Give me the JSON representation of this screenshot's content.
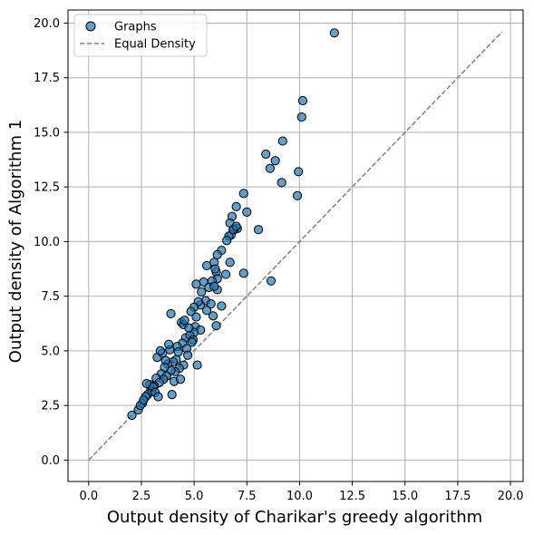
{
  "chart_data": {
    "type": "scatter",
    "title": "",
    "xlabel": "Output density of Charikar's greedy algorithm",
    "ylabel": "Output density of Algorithm 1",
    "xlim": [
      -0.98,
      20.6
    ],
    "ylim": [
      -0.98,
      20.6
    ],
    "xticks": [
      0.0,
      2.5,
      5.0,
      7.5,
      10.0,
      12.5,
      15.0,
      17.5,
      20.0
    ],
    "yticks": [
      0.0,
      2.5,
      5.0,
      7.5,
      10.0,
      12.5,
      15.0,
      17.5,
      20.0
    ],
    "xtick_labels": [
      "0.0",
      "2.5",
      "5.0",
      "7.5",
      "10.0",
      "12.5",
      "15.0",
      "17.5",
      "20.0"
    ],
    "ytick_labels": [
      "0.0",
      "2.5",
      "5.0",
      "7.5",
      "10.0",
      "12.5",
      "15.0",
      "17.5",
      "20.0"
    ],
    "grid": true,
    "legend_position": "top-left",
    "series": [
      {
        "name": "Graphs",
        "kind": "scatter",
        "color": "#1f77b4",
        "edge_color": "#000000",
        "alpha": 0.7,
        "x": [
          11.65,
          10.15,
          10.1,
          9.2,
          8.4,
          8.85,
          8.6,
          9.95,
          9.15,
          9.9,
          7.35,
          7.0,
          6.8,
          7.5,
          6.7,
          7.05,
          6.9,
          6.75,
          6.65,
          6.85,
          6.55,
          6.3,
          6.1,
          7.0,
          8.05,
          6.7,
          5.95,
          6.05,
          5.6,
          6.0,
          6.1,
          5.45,
          5.1,
          6.5,
          5.85,
          7.35,
          8.65,
          5.7,
          6.1,
          5.95,
          5.35,
          5.55,
          5.3,
          5.8,
          5.2,
          5.0,
          5.6,
          5.9,
          6.05,
          4.85,
          6.3,
          5.1,
          4.4,
          4.5,
          5.05,
          5.3,
          5.0,
          4.6,
          4.8,
          4.95,
          4.45,
          4.2,
          3.85,
          4.65,
          4.25,
          4.7,
          4.15,
          4.0,
          4.5,
          4.3,
          3.75,
          4.1,
          3.9,
          3.45,
          3.7,
          3.55,
          3.2,
          3.35,
          3.1,
          2.95,
          2.8,
          3.0,
          2.9,
          2.7,
          2.55,
          2.35,
          2.05,
          2.45,
          2.6,
          4.05,
          3.95,
          4.35,
          3.65,
          3.25,
          3.05,
          3.5,
          3.8,
          4.75,
          4.55,
          2.75,
          3.15,
          3.3,
          3.6,
          3.4,
          4.9,
          5.15,
          3.9
        ],
        "y": [
          19.55,
          16.45,
          15.7,
          14.6,
          14.0,
          13.7,
          13.35,
          13.2,
          12.7,
          12.1,
          12.2,
          11.6,
          11.15,
          11.35,
          10.85,
          10.6,
          10.55,
          10.3,
          10.25,
          10.55,
          10.05,
          9.6,
          9.4,
          10.7,
          10.55,
          9.05,
          9.05,
          8.6,
          8.9,
          8.75,
          8.3,
          8.15,
          8.05,
          8.5,
          8.2,
          8.55,
          8.2,
          7.9,
          7.8,
          7.95,
          7.7,
          7.3,
          7.1,
          7.15,
          7.25,
          7.0,
          6.85,
          6.6,
          6.15,
          6.8,
          7.05,
          6.55,
          6.3,
          6.2,
          6.1,
          5.95,
          5.85,
          5.6,
          5.7,
          5.5,
          5.35,
          5.2,
          5.05,
          5.1,
          4.95,
          4.8,
          4.6,
          4.5,
          4.35,
          4.2,
          4.4,
          4.05,
          4.1,
          3.95,
          3.85,
          3.7,
          3.75,
          3.55,
          3.4,
          3.25,
          3.0,
          3.15,
          3.45,
          2.9,
          2.6,
          2.3,
          2.05,
          2.5,
          2.75,
          3.6,
          3.0,
          3.7,
          4.55,
          4.7,
          3.35,
          4.9,
          5.3,
          6.05,
          6.4,
          3.5,
          3.1,
          2.9,
          4.25,
          5.0,
          5.4,
          4.35,
          6.7
        ]
      },
      {
        "name": "Equal Density",
        "kind": "line",
        "style": "dashed",
        "color": "#808080",
        "x": [
          0,
          19.6
        ],
        "y": [
          0,
          19.6
        ]
      }
    ]
  }
}
